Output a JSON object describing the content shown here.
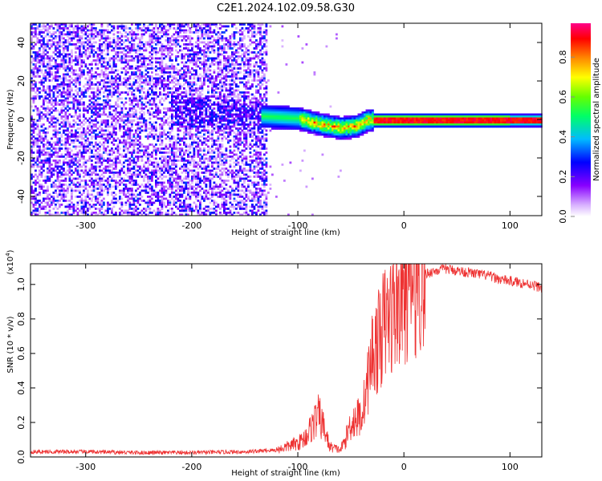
{
  "title": "C2E1.2024.102.09.58.G30",
  "chart_data": [
    {
      "type": "heatmap",
      "xlabel": "Height of straight line (km)",
      "ylabel": "Frequency (Hz)",
      "xlim": [
        -352,
        130
      ],
      "ylim": [
        -50,
        50
      ],
      "xticks": [
        -300,
        -200,
        -100,
        0,
        100
      ],
      "yticks": [
        -40,
        -20,
        0,
        20,
        40
      ],
      "colorbar": {
        "label": "Normalized spectral amplitude",
        "range": [
          0.0,
          0.97
        ],
        "ticks": [
          0.0,
          0.2,
          0.4,
          0.6,
          0.8
        ],
        "colormap": "rainbow"
      },
      "features": {
        "noise_region_x": [
          -352,
          -130
        ],
        "noise_level": 0.15,
        "signal_band_center_hz": [
          [
            -130,
            2
          ],
          [
            -100,
            1
          ],
          [
            -80,
            -2
          ],
          [
            -60,
            -4
          ],
          [
            -45,
            -3
          ],
          [
            -35,
            0
          ],
          [
            -20,
            0
          ],
          [
            0,
            0
          ],
          [
            130,
            0
          ]
        ],
        "signal_peak_amplitude": 0.9
      }
    },
    {
      "type": "line",
      "xlabel": "Height of straight line (km)",
      "ylabel": "SNR (10 * v/v)",
      "y_multiplier_label": "(x10",
      "y_multiplier_exp": "4",
      "y_multiplier_close": ")",
      "xlim": [
        -352,
        130
      ],
      "ylim": [
        0,
        1.12
      ],
      "xticks": [
        -300,
        -200,
        -100,
        0,
        100
      ],
      "yticks": [
        0.0,
        0.2,
        0.4,
        0.6,
        0.8,
        1.0
      ],
      "series": [
        {
          "color": "#ee3333",
          "x": [
            -352,
            -300,
            -250,
            -200,
            -150,
            -120,
            -100,
            -95,
            -90,
            -85,
            -80,
            -75,
            -70,
            -65,
            -60,
            -55,
            -50,
            -45,
            -40,
            -35,
            -30,
            -25,
            -20,
            -15,
            -10,
            -5,
            0,
            10,
            20,
            30,
            40,
            50,
            60,
            70,
            80,
            90,
            100,
            110,
            120,
            130
          ],
          "y": [
            0.03,
            0.03,
            0.025,
            0.025,
            0.03,
            0.04,
            0.08,
            0.1,
            0.14,
            0.2,
            0.24,
            0.16,
            0.06,
            0.05,
            0.04,
            0.1,
            0.2,
            0.22,
            0.24,
            0.4,
            0.6,
            0.65,
            0.75,
            0.8,
            0.85,
            0.9,
            0.95,
            1.02,
            1.06,
            1.08,
            1.09,
            1.08,
            1.07,
            1.06,
            1.05,
            1.03,
            1.02,
            1.01,
            1.0,
            0.98
          ]
        }
      ]
    }
  ]
}
